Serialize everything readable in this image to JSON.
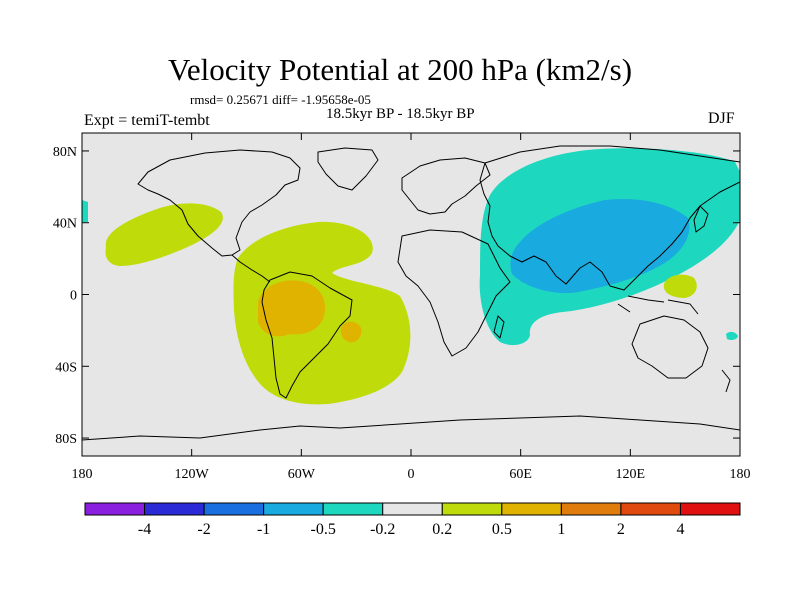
{
  "title": "Velocity Potential at 200 hPa (km2/s)",
  "stats": "rmsd= 0.25671  diff= -1.95658e-05",
  "period": "18.5kyr BP - 18.5kyr BP",
  "expt": "Expt = temiT-tembt",
  "season": "DJF",
  "axes": {
    "lat_labels": [
      "80N",
      "40N",
      "0",
      "40S",
      "80S"
    ],
    "lat_values": [
      80,
      40,
      0,
      -40,
      -80
    ],
    "lon_labels": [
      "180",
      "120W",
      "60W",
      "0",
      "60E",
      "120E",
      "180"
    ],
    "lon_values": [
      -180,
      -120,
      -60,
      0,
      60,
      120,
      180
    ]
  },
  "colorbar": {
    "labels": [
      "-4",
      "-2",
      "-1",
      "-0.5",
      "-0.2",
      "0.2",
      "0.5",
      "1",
      "2",
      "4"
    ],
    "colors": [
      "#8a1fe0",
      "#2a2ad6",
      "#1a6fe0",
      "#19aadf",
      "#1dd8be",
      "#e6e6e6",
      "#bfdc0a",
      "#e0b300",
      "#e07c0c",
      "#e04a0e",
      "#e01010"
    ]
  },
  "colors": {
    "background": "#e6e6e6",
    "level_neg_02": "#1dd8be",
    "level_neg_05": "#19aadf",
    "level_pos_02": "#bfdc0a",
    "level_pos_05": "#e0b300"
  }
}
